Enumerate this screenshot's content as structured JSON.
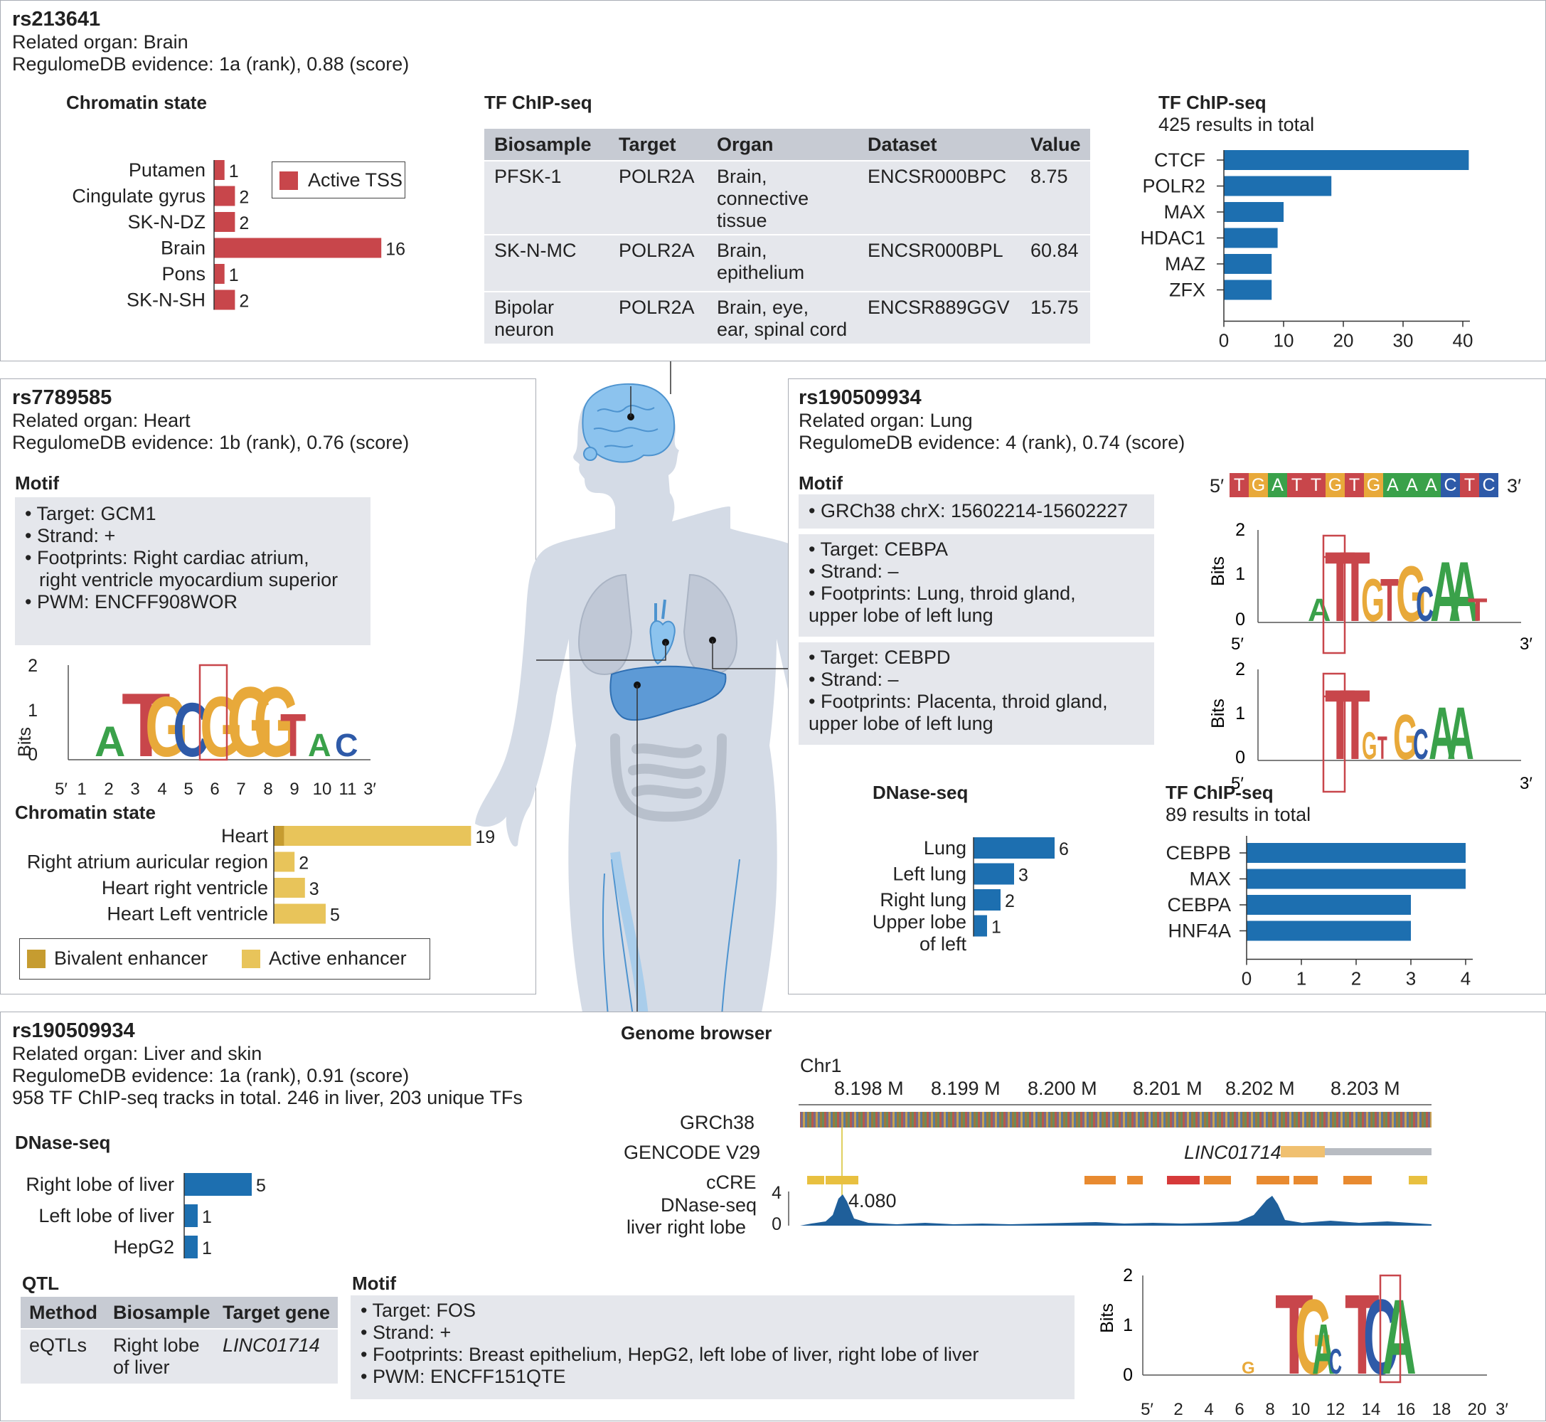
{
  "colors": {
    "red": "#c8464b",
    "blue": "#1d6fb0",
    "yellow": "#e8c45a",
    "dark_yellow": "#c69c30",
    "grey_box": "#e5e7ec",
    "grey_head": "#c7cbd3"
  },
  "panel_brain": {
    "title": "rs213641",
    "organ": "Related organ: Brain",
    "evidence": "RegulomeDB evidence: 1a (rank), 0.88 (score)",
    "chromatin_heading": "Chromatin state",
    "legend_label": "Active TSS",
    "table_heading": "TF ChIP-seq",
    "table": {
      "headers": [
        "Biosample",
        "Target",
        "Organ",
        "Dataset",
        "Value"
      ],
      "rows": [
        {
          "biosample": [
            "PFSK-1"
          ],
          "target": "POLR2A",
          "organ": [
            "Brain,",
            "connective",
            "tissue"
          ],
          "dataset": "ENCSR000BPC",
          "value": "8.75"
        },
        {
          "biosample": [
            "SK-N-MC"
          ],
          "target": "POLR2A",
          "organ": [
            "Brain,",
            "epithelium"
          ],
          "dataset": "ENCSR000BPL",
          "value": "60.84"
        },
        {
          "biosample": [
            "Bipolar",
            "neuron"
          ],
          "target": "POLR2A",
          "organ": [
            "Brain, eye,",
            "ear, spinal cord"
          ],
          "dataset": "ENCSR889GGV",
          "value": "15.75"
        }
      ]
    },
    "tf_heading": "TF ChIP-seq",
    "tf_subtitle": "425 results in total"
  },
  "panel_heart": {
    "title": "rs7789585",
    "organ": "Related organ: Heart",
    "evidence": "RegulomeDB evidence: 1b (rank), 0.76 (score)",
    "motif_heading": "Motif",
    "motif_lines": [
      "• Target: GCM1",
      "• Strand: +",
      "• Footprints: Right cardiac atrium,",
      "  right ventricle myocardium superior",
      "• PWM: ENCFF908WOR"
    ],
    "logo_ylabel": "Bits",
    "chromatin_heading": "Chromatin state",
    "legend": [
      "Bivalent enhancer",
      "Active enhancer"
    ]
  },
  "panel_lung": {
    "title": "rs190509934",
    "organ": "Related organ: Lung",
    "evidence": "RegulomeDB evidence: 4 (rank), 0.74 (score)",
    "motif_heading": "Motif",
    "coord": "• GRCh38 chrX: 15602214-15602227",
    "cebpa_lines": [
      "• Target: CEBPA",
      "• Strand: –",
      "• Footprints: Lung, throid gland,",
      "upper lobe of left lung"
    ],
    "cebpd_lines": [
      "• Target: CEBPD",
      "• Strand: –",
      "• Footprints: Placenta, throid gland,",
      "upper lobe of left lung"
    ],
    "sequence": [
      "T",
      "G",
      "A",
      "T",
      "T",
      "G",
      "T",
      "G",
      "A",
      "A",
      "A",
      "C",
      "T",
      "C"
    ],
    "seq_start": "5′",
    "seq_end": "3′",
    "logo_ylabel": "Bits",
    "dnase_heading": "DNase-seq",
    "tf_heading": "TF ChIP-seq",
    "tf_subtitle": "89 results in total"
  },
  "panel_liver": {
    "title": "rs190509934",
    "organ": "Related organ: Liver and skin",
    "evidence": "RegulomeDB evidence: 1a (rank), 0.91 (score)",
    "tracks": "958 TF ChIP-seq tracks in total. 246 in liver, 203 unique TFs",
    "dnase_heading": "DNase-seq",
    "qtl_heading": "QTL",
    "qtl_headers": [
      "Method",
      "Biosample",
      "Target gene"
    ],
    "qtl_row": {
      "method": "eQTLs",
      "biosample": [
        "Right lobe",
        "of liver"
      ],
      "gene": "LINC01714"
    },
    "motif_heading": "Motif",
    "motif_lines": [
      "• Target: FOS",
      "• Strand: +",
      "• Footprints: Breast epithelium, HepG2, left lobe of liver, right lobe of liver",
      "• PWM: ENCFF151QTE"
    ],
    "browser_heading": "Genome browser",
    "chrom": "Chr1",
    "ticks": [
      "8.198 M",
      "8.199 M",
      "8.200 M",
      "8.201 M",
      "8.202 M",
      "8.203 M"
    ],
    "track_labels": [
      "GRCh38",
      "GENCODE V29",
      "cCRE",
      "DNase-seq",
      "liver right lobe"
    ],
    "gene_label": "LINC01714",
    "peak_label": "4.080",
    "logo_ylabel": "Bits"
  },
  "chart_data": [
    {
      "type": "bar",
      "title": "Chromatin state",
      "orientation": "horizontal",
      "categories": [
        "Putamen",
        "Cingulate gyrus",
        "SK-N-DZ",
        "Brain",
        "Pons",
        "SK-N-SH"
      ],
      "values": [
        1,
        2,
        2,
        16,
        1,
        2
      ],
      "legend": [
        "Active TSS"
      ]
    },
    {
      "type": "bar",
      "title": "TF ChIP-seq",
      "subtitle": "425 results in total",
      "orientation": "horizontal",
      "categories": [
        "CTCF",
        "POLR2",
        "MAX",
        "HDAC1",
        "MAZ",
        "ZFX"
      ],
      "values": [
        41,
        18,
        10,
        9,
        8,
        8
      ],
      "xticks": [
        0,
        10,
        20,
        30,
        40
      ]
    },
    {
      "type": "bar",
      "title": "Chromatin state",
      "orientation": "horizontal",
      "categories": [
        "Heart",
        "Right atrium auricular region",
        "Heart right ventricle",
        "Heart Left ventricle"
      ],
      "values": [
        19,
        2,
        3,
        5
      ],
      "series": [
        {
          "name": "Bivalent enhancer",
          "values": [
            1,
            0,
            0,
            0
          ]
        },
        {
          "name": "Active enhancer",
          "values": [
            18,
            2,
            3,
            5
          ]
        }
      ]
    },
    {
      "type": "bar",
      "title": "DNase-seq",
      "orientation": "horizontal",
      "categories": [
        "Lung",
        "Left lung",
        "Right lung",
        "Upper lobe of left"
      ],
      "values": [
        6,
        3,
        2,
        1
      ]
    },
    {
      "type": "bar",
      "title": "TF ChIP-seq",
      "subtitle": "89 results in total",
      "orientation": "horizontal",
      "categories": [
        "CEBPB",
        "MAX",
        "CEBPA",
        "HNF4A"
      ],
      "values": [
        4,
        4,
        3,
        3
      ],
      "xticks": [
        0,
        1,
        2,
        3,
        4
      ]
    },
    {
      "type": "bar",
      "title": "DNase-seq",
      "orientation": "horizontal",
      "categories": [
        "Right lobe of liver",
        "Left lobe of liver",
        "HepG2"
      ],
      "values": [
        5,
        1,
        1
      ]
    }
  ]
}
